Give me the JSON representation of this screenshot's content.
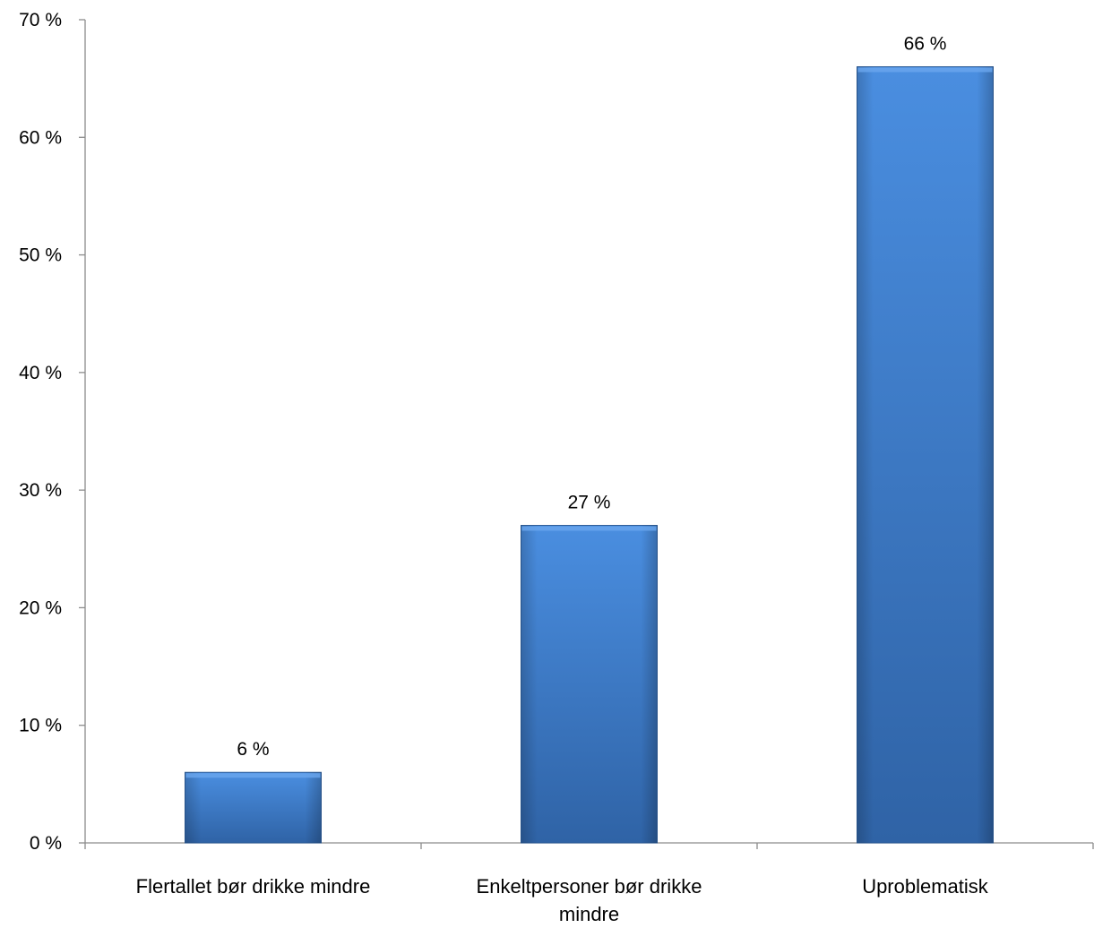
{
  "chart_data": {
    "type": "bar",
    "categories": [
      "Flertallet bør drikke mindre",
      "Enkeltpersoner bør drikke mindre",
      "Uproblematisk"
    ],
    "values": [
      6,
      27,
      66
    ],
    "data_labels": [
      "6 %",
      "27 %",
      "66 %"
    ],
    "ylim": [
      0,
      70
    ],
    "yticks": [
      0,
      10,
      20,
      30,
      40,
      50,
      60,
      70
    ],
    "ytick_labels": [
      "0 %",
      "10 %",
      "20 %",
      "30 %",
      "40 %",
      "50 %",
      "60 %",
      "70 %"
    ],
    "grid": false,
    "legend": "none",
    "bar_color": "#3f7fcf"
  }
}
